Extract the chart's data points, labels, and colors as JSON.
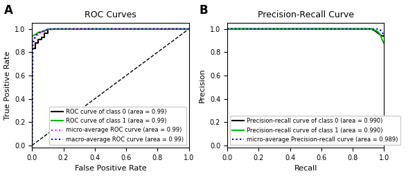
{
  "fig_width": 5.99,
  "fig_height": 2.54,
  "dpi": 100,
  "panel_A": {
    "title": "ROC Curves",
    "xlabel": "False Positive Rate",
    "ylabel": "True Positive Rate",
    "xlim": [
      0.0,
      1.0
    ],
    "ylim": [
      -0.02,
      1.05
    ],
    "xticks": [
      0.0,
      0.2,
      0.4,
      0.6,
      0.8,
      1.0
    ],
    "yticks": [
      0.0,
      0.2,
      0.4,
      0.6,
      0.8,
      1.0
    ],
    "label_A": "A",
    "roc_class0": {
      "fpr": [
        0.0,
        0.0,
        0.02,
        0.02,
        0.04,
        0.04,
        0.06,
        0.06,
        0.08,
        0.08,
        0.1,
        0.1,
        0.12,
        0.14,
        0.16,
        0.18,
        1.0
      ],
      "tpr": [
        0.0,
        0.83,
        0.83,
        0.88,
        0.88,
        0.91,
        0.91,
        0.93,
        0.93,
        0.96,
        0.96,
        1.0,
        1.0,
        1.0,
        1.0,
        1.0,
        1.0
      ],
      "color": "#000000",
      "lw": 1.5,
      "label": "ROC curve of class 0 (area = 0.99)"
    },
    "roc_class1": {
      "fpr": [
        0.0,
        0.0,
        0.02,
        0.04,
        0.06,
        0.08,
        0.1,
        0.12,
        0.18,
        1.0
      ],
      "tpr": [
        0.0,
        0.94,
        0.95,
        0.97,
        0.975,
        0.985,
        0.995,
        1.0,
        1.0,
        1.0
      ],
      "color": "#00bb00",
      "lw": 1.5,
      "label": "ROC curve of class 1 (area = 0.99)"
    },
    "roc_micro": {
      "fpr": [
        0.0,
        0.005,
        0.01,
        0.015,
        0.02,
        0.025,
        0.03,
        0.04,
        0.05,
        0.06,
        0.07,
        0.08,
        0.09,
        0.1,
        0.15,
        1.0
      ],
      "tpr": [
        0.0,
        0.86,
        0.88,
        0.9,
        0.92,
        0.93,
        0.94,
        0.955,
        0.965,
        0.97,
        0.975,
        0.98,
        0.99,
        0.995,
        1.0,
        1.0
      ],
      "color": "#ff00ff",
      "lw": 1.5,
      "linestyle": "dotted",
      "label": "micro-average ROC curve (area = 0.99)"
    },
    "roc_macro": {
      "fpr": [
        0.0,
        0.005,
        0.01,
        0.015,
        0.02,
        0.025,
        0.03,
        0.04,
        0.05,
        0.06,
        0.07,
        0.08,
        0.09,
        0.1,
        0.15,
        1.0
      ],
      "tpr": [
        0.0,
        0.88,
        0.9,
        0.92,
        0.94,
        0.945,
        0.955,
        0.965,
        0.97,
        0.975,
        0.98,
        0.985,
        0.99,
        0.995,
        1.0,
        1.0
      ],
      "color": "#0000dd",
      "lw": 1.5,
      "linestyle": "dotted",
      "label": "macro-average ROC curve (area = 0.99)"
    },
    "diag_color": "#000000",
    "diag_lw": 1.0,
    "diag_linestyle": "dashed"
  },
  "panel_B": {
    "title": "Precision-Recall Curve",
    "xlabel": "Recall",
    "ylabel": "Precision",
    "xlim": [
      0.0,
      1.0
    ],
    "ylim": [
      -0.02,
      1.05
    ],
    "xticks": [
      0.0,
      0.2,
      0.4,
      0.6,
      0.8,
      1.0
    ],
    "yticks": [
      0.0,
      0.2,
      0.4,
      0.6,
      0.8,
      1.0
    ],
    "label_B": "B",
    "pr_class0": {
      "recall": [
        0.0,
        0.82,
        0.84,
        0.86,
        0.88,
        0.9,
        0.91,
        0.92,
        0.93,
        0.94,
        0.95,
        0.96,
        0.965,
        0.97,
        0.975,
        0.98,
        0.985,
        0.99,
        1.0
      ],
      "precision": [
        1.0,
        1.0,
        1.0,
        1.0,
        1.0,
        1.0,
        1.0,
        1.0,
        0.99,
        0.985,
        0.975,
        0.965,
        0.96,
        0.955,
        0.95,
        0.945,
        0.94,
        0.94,
        0.94
      ],
      "color": "#000000",
      "lw": 1.5,
      "label": "Precision-recall curve of class 0 (area = 0.990)"
    },
    "pr_class1": {
      "recall": [
        0.0,
        0.82,
        0.84,
        0.86,
        0.88,
        0.9,
        0.92,
        0.94,
        0.95,
        0.96,
        0.97,
        0.975,
        0.98,
        0.985,
        0.99,
        1.0
      ],
      "precision": [
        1.0,
        1.0,
        1.0,
        1.0,
        1.0,
        1.0,
        1.0,
        0.99,
        0.985,
        0.975,
        0.96,
        0.95,
        0.935,
        0.915,
        0.9,
        0.875
      ],
      "color": "#00bb00",
      "lw": 1.5,
      "label": "Precision-recall curve of class 1 (area = 0.990)"
    },
    "pr_micro": {
      "recall": [
        0.0,
        0.82,
        0.84,
        0.86,
        0.88,
        0.9,
        0.92,
        0.94,
        0.96,
        0.965,
        0.97,
        0.975,
        0.98,
        0.985,
        0.99,
        0.995,
        1.0
      ],
      "precision": [
        1.0,
        1.0,
        1.0,
        1.0,
        1.0,
        1.0,
        1.0,
        1.0,
        1.0,
        1.0,
        0.995,
        0.99,
        0.985,
        0.975,
        0.965,
        0.96,
        0.96
      ],
      "color": "#0000dd",
      "lw": 1.5,
      "linestyle": "dotted",
      "label": "micro-average Precision-recall curve (area = 0.989)"
    }
  },
  "legend_fontsize": 6.0,
  "tick_fontsize": 7,
  "axis_label_fontsize": 8,
  "title_fontsize": 9
}
